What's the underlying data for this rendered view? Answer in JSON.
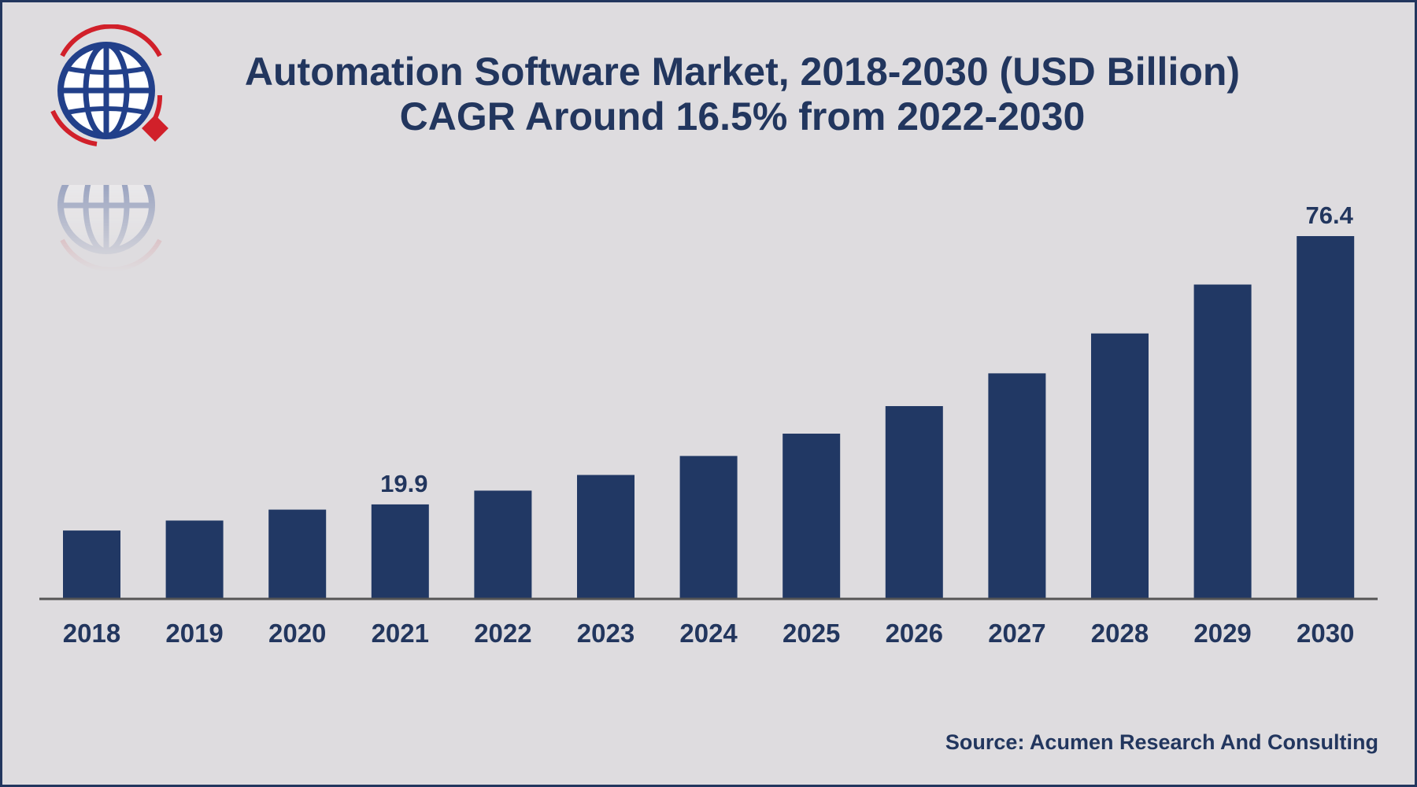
{
  "header": {
    "title_line1": "Automation Software Market, 2018-2030 (USD Billion)",
    "title_line2": "CAGR Around 16.5% from 2022-2030"
  },
  "logo": {
    "icon": "globe-magnifier-logo-icon",
    "colors": [
      "#22408a",
      "#d1202a"
    ]
  },
  "footer": {
    "source": "Source: Acumen Research And Consulting"
  },
  "colors": {
    "bar": "#213864",
    "text": "#22365e",
    "background": "#dedcdf",
    "axis": "#555555"
  },
  "chart_data": {
    "type": "bar",
    "title": "Automation Software Market, 2018-2030 (USD Billion)",
    "subtitle": "CAGR Around 16.5% from 2022-2030",
    "categories": [
      "2018",
      "2019",
      "2020",
      "2021",
      "2022",
      "2023",
      "2024",
      "2025",
      "2026",
      "2027",
      "2028",
      "2029",
      "2030"
    ],
    "values": [
      14.4,
      16.5,
      18.8,
      19.9,
      22.8,
      26.1,
      30.1,
      34.8,
      40.6,
      47.5,
      55.9,
      66.2,
      76.4
    ],
    "data_labels": [
      {
        "category": "2021",
        "text": "19.9"
      },
      {
        "category": "2030",
        "text": "76.4"
      }
    ],
    "xlabel": "",
    "ylabel": "",
    "ylim": [
      0,
      76.4
    ],
    "grid": false,
    "legend": "none"
  }
}
